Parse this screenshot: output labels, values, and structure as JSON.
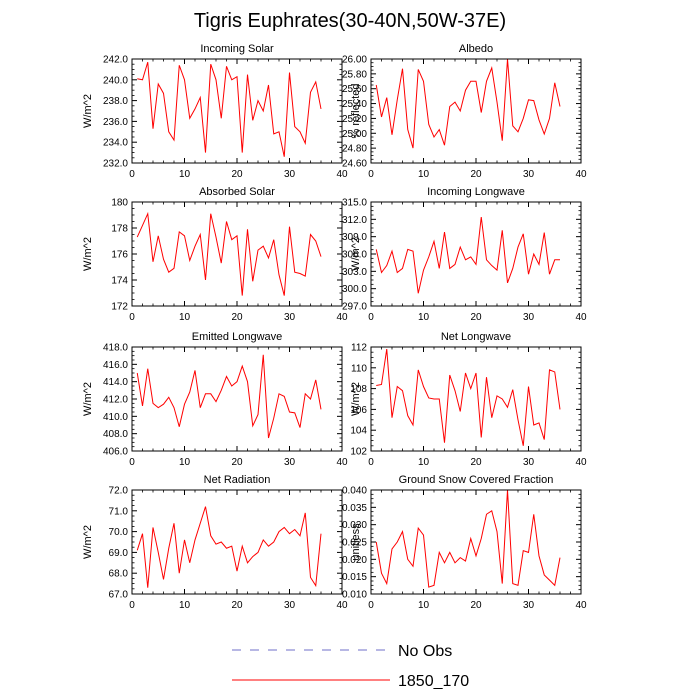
{
  "figure": {
    "title": "Tigris Euphrates(30-40N,50W-37E)",
    "colors": {
      "model": "#ff0000",
      "obs": "#6f6fc8"
    },
    "legend": {
      "location": "bottom-center",
      "entries": [
        {
          "label": "No Obs",
          "style": "dashed",
          "color": "#6f6fc8"
        },
        {
          "label": "1850_170",
          "style": "solid",
          "color": "#ff0000"
        }
      ]
    }
  },
  "chart_data": [
    {
      "type": "line",
      "title": "Incoming Solar",
      "xlabel": "",
      "ylabel": "W/m^2",
      "xlim": [
        0,
        40
      ],
      "xticks": [
        "0",
        "10",
        "20",
        "30",
        "40"
      ],
      "ylim": [
        232,
        242
      ],
      "yticks": [
        "232.0",
        "234.0",
        "236.0",
        "238.0",
        "240.0",
        "242.0"
      ],
      "series": [
        {
          "name": "1850_170",
          "x": [
            1,
            2,
            3,
            4,
            5,
            6,
            7,
            8,
            9,
            10,
            11,
            12,
            13,
            14,
            15,
            16,
            17,
            18,
            19,
            20,
            21,
            22,
            23,
            24,
            25,
            26,
            27,
            28,
            29,
            30,
            31,
            32,
            33,
            34,
            35,
            36
          ],
          "values": [
            240.1,
            240.0,
            241.7,
            235.3,
            239.6,
            238.7,
            235.0,
            234.2,
            241.4,
            240.0,
            236.3,
            237.2,
            238.3,
            233.0,
            241.5,
            240.0,
            236.3,
            241.3,
            240.0,
            240.3,
            233.0,
            240.5,
            236.1,
            238.0,
            237.0,
            239.5,
            234.8,
            235.0,
            232.6,
            240.7,
            235.5,
            235.0,
            233.9,
            238.8,
            239.8,
            237.2
          ]
        }
      ]
    },
    {
      "type": "line",
      "title": "Albedo",
      "xlabel": "",
      "ylabel": "% reflected",
      "xlim": [
        0,
        40
      ],
      "xticks": [
        "0",
        "10",
        "20",
        "30",
        "40"
      ],
      "ylim": [
        24.6,
        26.0
      ],
      "yticks": [
        "24.60",
        "24.80",
        "25.00",
        "25.20",
        "25.40",
        "25.60",
        "25.80",
        "26.00"
      ],
      "series": [
        {
          "name": "1850_170",
          "x": [
            1,
            2,
            3,
            4,
            5,
            6,
            7,
            8,
            9,
            10,
            11,
            12,
            13,
            14,
            15,
            16,
            17,
            18,
            19,
            20,
            21,
            22,
            23,
            24,
            25,
            26,
            27,
            28,
            29,
            30,
            31,
            32,
            33,
            34,
            35,
            36
          ],
          "values": [
            25.65,
            25.22,
            25.48,
            24.98,
            25.45,
            25.87,
            25.05,
            24.8,
            25.86,
            25.7,
            25.12,
            24.95,
            25.05,
            24.84,
            25.36,
            25.42,
            25.3,
            25.58,
            25.7,
            25.7,
            25.28,
            25.7,
            25.88,
            25.42,
            24.9,
            26.0,
            25.1,
            25.02,
            25.2,
            25.45,
            25.44,
            25.18,
            24.99,
            25.2,
            25.68,
            25.36
          ]
        }
      ]
    },
    {
      "type": "line",
      "title": "Absorbed Solar",
      "xlabel": "",
      "ylabel": "W/m^2",
      "xlim": [
        0,
        40
      ],
      "xticks": [
        "0",
        "10",
        "20",
        "30",
        "40"
      ],
      "ylim": [
        172,
        180
      ],
      "yticks": [
        "172",
        "174",
        "176",
        "178",
        "180"
      ],
      "series": [
        {
          "name": "1850_170",
          "x": [
            1,
            2,
            3,
            4,
            5,
            6,
            7,
            8,
            9,
            10,
            11,
            12,
            13,
            14,
            15,
            16,
            17,
            18,
            19,
            20,
            21,
            22,
            23,
            24,
            25,
            26,
            27,
            28,
            29,
            30,
            31,
            32,
            33,
            34,
            35,
            36
          ],
          "values": [
            177.3,
            178.2,
            179.1,
            175.4,
            177.4,
            175.6,
            174.6,
            174.9,
            177.7,
            177.4,
            175.5,
            176.6,
            177.5,
            174.0,
            179.1,
            177.3,
            175.3,
            178.5,
            177.1,
            177.4,
            172.8,
            177.9,
            173.9,
            176.3,
            176.6,
            175.7,
            177.1,
            174.4,
            172.8,
            178.1,
            174.6,
            174.5,
            174.3,
            177.5,
            177.0,
            175.8
          ]
        }
      ]
    },
    {
      "type": "line",
      "title": "Incoming Longwave",
      "xlabel": "",
      "ylabel": "W/m^2",
      "xlim": [
        0,
        40
      ],
      "xticks": [
        "0",
        "10",
        "20",
        "30",
        "40"
      ],
      "ylim": [
        297,
        315
      ],
      "yticks": [
        "297.0",
        "300.0",
        "303.0",
        "306.0",
        "309.0",
        "312.0",
        "315.0"
      ],
      "series": [
        {
          "name": "1850_170",
          "x": [
            1,
            2,
            3,
            4,
            5,
            6,
            7,
            8,
            9,
            10,
            11,
            12,
            13,
            14,
            15,
            16,
            17,
            18,
            19,
            20,
            21,
            22,
            23,
            24,
            25,
            26,
            27,
            28,
            29,
            30,
            31,
            32,
            33,
            34,
            35,
            36
          ],
          "values": [
            306.8,
            302.8,
            304.0,
            306.5,
            302.8,
            303.5,
            306.8,
            306.5,
            299.2,
            303.2,
            305.5,
            308.2,
            303.5,
            309.8,
            303.5,
            304.2,
            307.2,
            305.0,
            305.5,
            304.2,
            312.4,
            305.0,
            304.0,
            303.2,
            310.1,
            301.0,
            303.5,
            307.2,
            309.5,
            302.5,
            306.0,
            304.2,
            309.7,
            302.5,
            305.0,
            305.0
          ]
        }
      ]
    },
    {
      "type": "line",
      "title": "Emitted Longwave",
      "xlabel": "",
      "ylabel": "W/m^2",
      "xlim": [
        0,
        40
      ],
      "xticks": [
        "0",
        "10",
        "20",
        "30",
        "40"
      ],
      "ylim": [
        406,
        418
      ],
      "yticks": [
        "406.0",
        "408.0",
        "410.0",
        "412.0",
        "414.0",
        "416.0",
        "418.0"
      ],
      "series": [
        {
          "name": "1850_170",
          "x": [
            1,
            2,
            3,
            4,
            5,
            6,
            7,
            8,
            9,
            10,
            11,
            12,
            13,
            14,
            15,
            16,
            17,
            18,
            19,
            20,
            21,
            22,
            23,
            24,
            25,
            26,
            27,
            28,
            29,
            30,
            31,
            32,
            33,
            34,
            35,
            36
          ],
          "values": [
            415.0,
            411.2,
            415.5,
            411.5,
            411.0,
            411.4,
            412.2,
            411.0,
            408.8,
            411.4,
            412.8,
            415.3,
            411.0,
            412.6,
            412.6,
            411.7,
            413.0,
            414.6,
            413.5,
            414.0,
            415.8,
            414.0,
            408.9,
            410.2,
            417.1,
            407.5,
            409.8,
            412.6,
            412.3,
            410.5,
            410.4,
            408.7,
            412.6,
            412.0,
            414.2,
            410.8
          ]
        }
      ]
    },
    {
      "type": "line",
      "title": "Net Longwave",
      "xlabel": "",
      "ylabel": "W/m^2",
      "xlim": [
        0,
        40
      ],
      "xticks": [
        "0",
        "10",
        "20",
        "30",
        "40"
      ],
      "ylim": [
        102,
        112
      ],
      "yticks": [
        "102",
        "104",
        "106",
        "108",
        "110",
        "112"
      ],
      "series": [
        {
          "name": "1850_170",
          "x": [
            1,
            2,
            3,
            4,
            5,
            6,
            7,
            8,
            9,
            10,
            11,
            12,
            13,
            14,
            15,
            16,
            17,
            18,
            19,
            20,
            21,
            22,
            23,
            24,
            25,
            26,
            27,
            28,
            29,
            30,
            31,
            32,
            33,
            34,
            35,
            36
          ],
          "values": [
            108.3,
            108.4,
            111.8,
            105.2,
            108.2,
            107.8,
            105.4,
            104.5,
            109.8,
            108.2,
            107.1,
            107.0,
            107.0,
            102.8,
            109.3,
            107.8,
            105.8,
            109.5,
            108.0,
            109.5,
            103.3,
            109.1,
            105.2,
            107.3,
            107.0,
            106.2,
            107.9,
            105.0,
            102.5,
            108.2,
            104.5,
            104.7,
            103.1,
            109.8,
            109.6,
            106.0
          ]
        }
      ]
    },
    {
      "type": "line",
      "title": "Net Radiation",
      "xlabel": "",
      "ylabel": "W/m^2",
      "xlim": [
        0,
        40
      ],
      "xticks": [
        "0",
        "10",
        "20",
        "30",
        "40"
      ],
      "ylim": [
        67,
        72
      ],
      "yticks": [
        "67.0",
        "68.0",
        "69.0",
        "70.0",
        "71.0",
        "72.0"
      ],
      "series": [
        {
          "name": "1850_170",
          "x": [
            1,
            2,
            3,
            4,
            5,
            6,
            7,
            8,
            9,
            10,
            11,
            12,
            13,
            14,
            15,
            16,
            17,
            18,
            19,
            20,
            21,
            22,
            23,
            24,
            25,
            26,
            27,
            28,
            29,
            30,
            31,
            32,
            33,
            34,
            35,
            36
          ],
          "values": [
            69.1,
            69.9,
            67.3,
            70.2,
            69.0,
            67.7,
            69.2,
            70.4,
            68.0,
            69.6,
            68.5,
            69.6,
            70.4,
            71.2,
            69.8,
            69.4,
            69.5,
            69.2,
            69.3,
            68.1,
            69.3,
            68.5,
            68.8,
            69.0,
            69.6,
            69.3,
            69.5,
            70.0,
            70.2,
            69.9,
            70.1,
            69.8,
            70.9,
            67.8,
            67.4,
            69.9
          ]
        }
      ]
    },
    {
      "type": "line",
      "title": "Ground Snow Covered Fraction",
      "xlabel": "",
      "ylabel": "unitless",
      "xlim": [
        0,
        40
      ],
      "xticks": [
        "0",
        "10",
        "20",
        "30",
        "40"
      ],
      "ylim": [
        0.01,
        0.04
      ],
      "yticks": [
        "0.010",
        "0.015",
        "0.020",
        "0.025",
        "0.030",
        "0.035",
        "0.040"
      ],
      "series": [
        {
          "name": "1850_170",
          "x": [
            1,
            2,
            3,
            4,
            5,
            6,
            7,
            8,
            9,
            10,
            11,
            12,
            13,
            14,
            15,
            16,
            17,
            18,
            19,
            20,
            21,
            22,
            23,
            24,
            25,
            26,
            27,
            28,
            29,
            30,
            31,
            32,
            33,
            34,
            35,
            36
          ],
          "values": [
            0.025,
            0.016,
            0.013,
            0.023,
            0.025,
            0.028,
            0.02,
            0.018,
            0.029,
            0.027,
            0.012,
            0.0125,
            0.022,
            0.019,
            0.022,
            0.019,
            0.0205,
            0.0195,
            0.026,
            0.021,
            0.026,
            0.033,
            0.034,
            0.028,
            0.013,
            0.04,
            0.013,
            0.0125,
            0.0225,
            0.022,
            0.033,
            0.021,
            0.0155,
            0.014,
            0.0125,
            0.0205
          ]
        }
      ]
    }
  ]
}
